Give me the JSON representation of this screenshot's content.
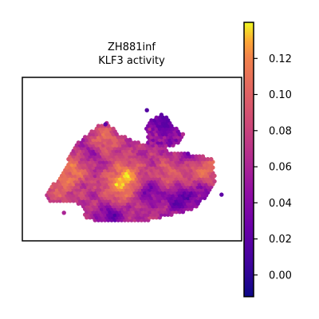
{
  "chart_data": {
    "type": "scatter",
    "title": "ZH881inf",
    "subtitle": "KLF3 activity",
    "xlabel": "",
    "ylabel": "",
    "grid": false,
    "axes_visible": false,
    "colormap": "plasma",
    "colorbar": {
      "vmin": -0.012,
      "vmax": 0.14,
      "ticks": [
        0.0,
        0.02,
        0.04,
        0.06,
        0.08,
        0.1,
        0.12
      ],
      "tick_labels": [
        "0.00",
        "0.02",
        "0.04",
        "0.06",
        "0.08",
        "0.10",
        "0.12"
      ]
    },
    "xlim": [
      0,
      100
    ],
    "ylim": [
      0,
      75
    ],
    "tissue_outline": [
      [
        7,
        21
      ],
      [
        10,
        24
      ],
      [
        14,
        29
      ],
      [
        17,
        33
      ],
      [
        20,
        42
      ],
      [
        24,
        47
      ],
      [
        29,
        52
      ],
      [
        33,
        55
      ],
      [
        37,
        57
      ],
      [
        40,
        55
      ],
      [
        44,
        51
      ],
      [
        48,
        49
      ],
      [
        51,
        48
      ],
      [
        55,
        46
      ],
      [
        59,
        46
      ],
      [
        63,
        44
      ],
      [
        67,
        43
      ],
      [
        71,
        42
      ],
      [
        75,
        42
      ],
      [
        79,
        41
      ],
      [
        83,
        41
      ],
      [
        88,
        39
      ],
      [
        89,
        37
      ],
      [
        90,
        30
      ],
      [
        89,
        24
      ],
      [
        87,
        21
      ],
      [
        84,
        18
      ],
      [
        81,
        15
      ],
      [
        78,
        13
      ],
      [
        74,
        12
      ],
      [
        70,
        11
      ],
      [
        66,
        10
      ],
      [
        62,
        9
      ],
      [
        57,
        8
      ],
      [
        52,
        8
      ],
      [
        47,
        8
      ],
      [
        42,
        8
      ],
      [
        37,
        8
      ],
      [
        32,
        8
      ],
      [
        28,
        9
      ],
      [
        26,
        11
      ],
      [
        27,
        14
      ],
      [
        25,
        16
      ],
      [
        21,
        17
      ],
      [
        16,
        17
      ],
      [
        12,
        17
      ],
      [
        9,
        18
      ]
    ],
    "arm_outline": [
      [
        57,
        46
      ],
      [
        57,
        51
      ],
      [
        56,
        55
      ],
      [
        58,
        58
      ],
      [
        61,
        60
      ],
      [
        64,
        61
      ],
      [
        67,
        60
      ],
      [
        68,
        58
      ],
      [
        70,
        55
      ],
      [
        73,
        53
      ],
      [
        75,
        51
      ],
      [
        74,
        48
      ],
      [
        70,
        45
      ],
      [
        65,
        44
      ],
      [
        60,
        44
      ]
    ],
    "activity_field": {
      "base": 0.068,
      "hotspots": [
        {
          "x": 47,
          "y": 30,
          "value": 0.13
        },
        {
          "x": 22,
          "y": 35,
          "value": 0.11
        },
        {
          "x": 36,
          "y": 48,
          "value": 0.11
        },
        {
          "x": 68,
          "y": 31,
          "value": 0.1
        },
        {
          "x": 15,
          "y": 26,
          "value": 0.1
        },
        {
          "x": 85,
          "y": 33,
          "value": 0.11
        },
        {
          "x": 42,
          "y": 21,
          "value": 0.1
        }
      ],
      "lowspots": [
        {
          "x": 66,
          "y": 57,
          "value": 0.015
        },
        {
          "x": 40,
          "y": 11,
          "value": 0.02
        },
        {
          "x": 73,
          "y": 19,
          "value": 0.02
        },
        {
          "x": 58,
          "y": 23,
          "value": 0.03
        },
        {
          "x": 30,
          "y": 42,
          "value": 0.035
        },
        {
          "x": 78,
          "y": 43,
          "value": 0.03
        },
        {
          "x": 85,
          "y": 22,
          "value": 0.035
        }
      ]
    },
    "outlier_points": [
      {
        "x": 57,
        "y": 63,
        "value": 0.015
      },
      {
        "x": 93,
        "y": 21,
        "value": 0.02
      },
      {
        "x": 17,
        "y": 12,
        "value": 0.06
      },
      {
        "x": 37,
        "y": 56,
        "value": 0.02
      }
    ]
  }
}
